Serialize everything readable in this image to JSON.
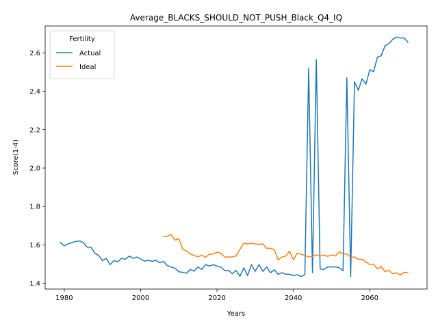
{
  "chart_data": {
    "type": "line",
    "title": "Average_BLACKS_SHOULD_NOT_PUSH_Black_Q4_IQ",
    "xlabel": "Years",
    "ylabel": "Score(1-4)",
    "xlim": [
      1975,
      2075
    ],
    "ylim": [
      1.37,
      2.74
    ],
    "xticks": [
      1980,
      2000,
      2020,
      2040,
      2060
    ],
    "yticks": [
      1.4,
      1.6,
      1.8,
      2.0,
      2.2,
      2.4,
      2.6
    ],
    "xtick_labels": [
      "1980",
      "2000",
      "2020",
      "2040",
      "2060"
    ],
    "ytick_labels": [
      "1.4",
      "1.6",
      "1.8",
      "2.0",
      "2.2",
      "2.4",
      "2.6"
    ],
    "grid": false,
    "legend": {
      "title": "Fertility",
      "placement": "upper-left",
      "entries": [
        "Actual",
        "Ideal"
      ]
    },
    "series": [
      {
        "name": "Actual",
        "color": "#1f77b4",
        "x": [
          1979,
          1980,
          1981,
          1982,
          1983,
          1984,
          1985,
          1986,
          1987,
          1988,
          1989,
          1990,
          1991,
          1992,
          1993,
          1994,
          1995,
          1996,
          1997,
          1998,
          1999,
          2000,
          2001,
          2002,
          2003,
          2004,
          2005,
          2006,
          2007,
          2008,
          2009,
          2010,
          2011,
          2012,
          2013,
          2014,
          2015,
          2016,
          2017,
          2018,
          2019,
          2020,
          2021,
          2022,
          2023,
          2024,
          2025,
          2026,
          2027,
          2028,
          2029,
          2030,
          2031,
          2032,
          2033,
          2034,
          2035,
          2036,
          2037,
          2038,
          2039,
          2040,
          2041,
          2042,
          2043,
          2044,
          2045,
          2046,
          2047,
          2048,
          2049,
          2050,
          2051,
          2052,
          2053,
          2054,
          2055,
          2056,
          2057,
          2058,
          2059,
          2060,
          2061,
          2062,
          2063,
          2064,
          2065,
          2066,
          2067,
          2068,
          2069,
          2070
        ],
        "values": [
          1.612,
          1.595,
          1.605,
          1.612,
          1.618,
          1.62,
          1.612,
          1.588,
          1.588,
          1.557,
          1.545,
          1.518,
          1.53,
          1.497,
          1.518,
          1.512,
          1.53,
          1.525,
          1.542,
          1.53,
          1.537,
          1.527,
          1.515,
          1.52,
          1.514,
          1.52,
          1.507,
          1.514,
          1.492,
          1.485,
          1.478,
          1.46,
          1.457,
          1.452,
          1.472,
          1.463,
          1.485,
          1.472,
          1.497,
          1.49,
          1.497,
          1.49,
          1.484,
          1.467,
          1.467,
          1.45,
          1.467,
          1.437,
          1.48,
          1.44,
          1.497,
          1.462,
          1.497,
          1.462,
          1.485,
          1.455,
          1.47,
          1.447,
          1.455,
          1.447,
          1.447,
          1.44,
          1.445,
          1.435,
          1.445,
          2.52,
          1.455,
          2.565,
          1.475,
          1.472,
          1.485,
          1.485,
          1.485,
          1.482,
          1.465,
          2.47,
          1.435,
          2.45,
          2.405,
          2.465,
          2.437,
          2.512,
          2.502,
          2.578,
          2.585,
          2.637,
          2.648,
          2.67,
          2.682,
          2.677,
          2.678,
          2.655
        ]
      },
      {
        "name": "Ideal",
        "color": "#ff7f0e",
        "x": [
          2006,
          2007,
          2008,
          2009,
          2010,
          2011,
          2012,
          2013,
          2014,
          2015,
          2016,
          2017,
          2018,
          2019,
          2020,
          2021,
          2022,
          2023,
          2024,
          2025,
          2026,
          2027,
          2028,
          2029,
          2030,
          2031,
          2032,
          2033,
          2034,
          2035,
          2036,
          2037,
          2038,
          2039,
          2040,
          2041,
          2042,
          2043,
          2044,
          2045,
          2046,
          2047,
          2048,
          2049,
          2050,
          2051,
          2052,
          2053,
          2054,
          2055,
          2056,
          2057,
          2058,
          2059,
          2060,
          2061,
          2062,
          2063,
          2064,
          2065,
          2066,
          2067,
          2068,
          2069,
          2070
        ],
        "values": [
          1.642,
          1.645,
          1.653,
          1.625,
          1.632,
          1.578,
          1.568,
          1.552,
          1.545,
          1.538,
          1.547,
          1.535,
          1.552,
          1.552,
          1.562,
          1.557,
          1.537,
          1.537,
          1.538,
          1.542,
          1.578,
          1.608,
          1.605,
          1.608,
          1.605,
          1.603,
          1.605,
          1.582,
          1.582,
          1.575,
          1.522,
          1.537,
          1.542,
          1.567,
          1.522,
          1.557,
          1.552,
          1.545,
          1.537,
          1.54,
          1.548,
          1.542,
          1.547,
          1.54,
          1.548,
          1.542,
          1.565,
          1.552,
          1.553,
          1.535,
          1.537,
          1.525,
          1.525,
          1.512,
          1.497,
          1.5,
          1.475,
          1.487,
          1.46,
          1.468,
          1.45,
          1.455,
          1.443,
          1.457,
          1.455
        ]
      }
    ]
  }
}
